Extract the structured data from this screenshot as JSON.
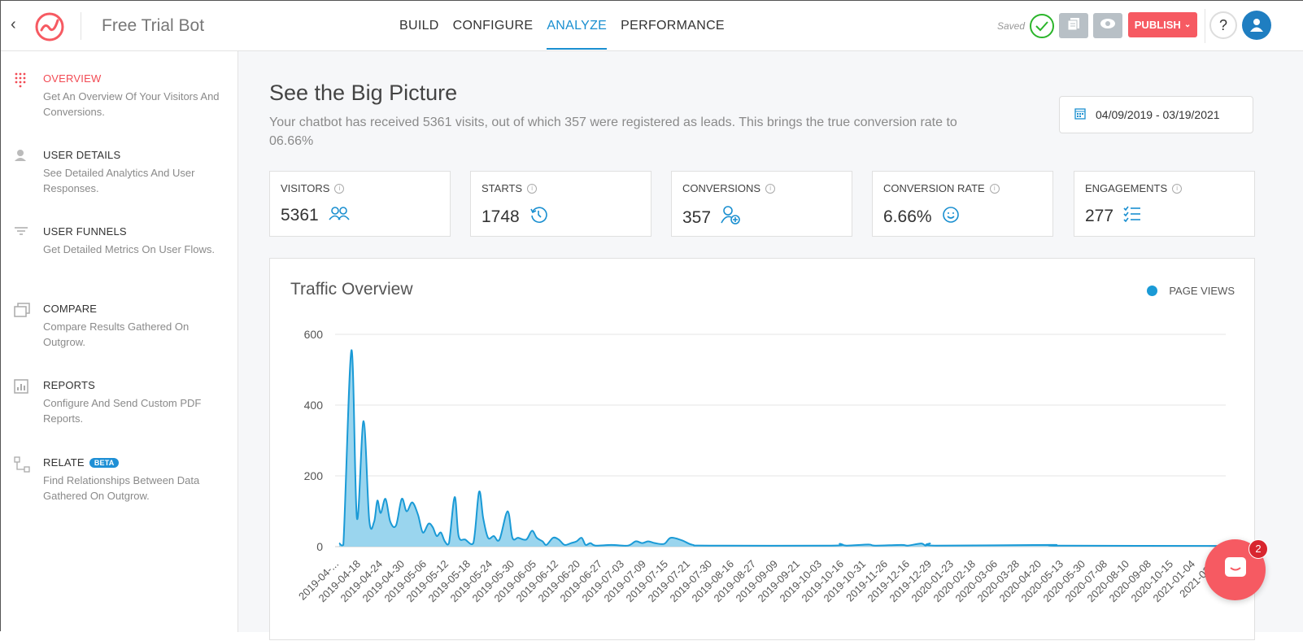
{
  "header": {
    "title": "Free Trial Bot",
    "nav": [
      "BUILD",
      "CONFIGURE",
      "ANALYZE",
      "PERFORMANCE"
    ],
    "active_nav": "ANALYZE",
    "saved": "Saved",
    "publish": "PUBLISH",
    "help": "?"
  },
  "sidebar": {
    "items": [
      {
        "label": "OVERVIEW",
        "desc": "Get An Overview Of Your Visitors And Conversions.",
        "icon": "grid-dots-icon"
      },
      {
        "label": "USER DETAILS",
        "desc": "See Detailed Analytics And User Responses.",
        "icon": "user-icon"
      },
      {
        "label": "USER FUNNELS",
        "desc": "Get Detailed Metrics On User Flows.",
        "icon": "filter-icon"
      },
      {
        "label": "COMPARE",
        "desc": "Compare Results Gathered On Outgrow.",
        "icon": "windows-icon"
      },
      {
        "label": "REPORTS",
        "desc": "Configure And Send Custom PDF Reports.",
        "icon": "report-icon"
      },
      {
        "label": "RELATE",
        "badge": "BETA",
        "desc": "Find Relationships Between Data Gathered On Outgrow.",
        "icon": "relate-icon"
      }
    ]
  },
  "main": {
    "heading": "See the Big Picture",
    "subtitle": "Your chatbot has received 5361 visits, out of which 357 were registered as leads. This brings the true conversion rate to 06.66%",
    "date_range": "04/09/2019 - 03/19/2021",
    "stats": [
      {
        "label": "VISITORS",
        "value": "5361",
        "icon": "users-icon"
      },
      {
        "label": "STARTS",
        "value": "1748",
        "icon": "history-icon"
      },
      {
        "label": "CONVERSIONS",
        "value": "357",
        "icon": "user-plus-icon"
      },
      {
        "label": "CONVERSION RATE",
        "value": "6.66%",
        "icon": "smile-icon"
      },
      {
        "label": "ENGAGEMENTS",
        "value": "277",
        "icon": "checklist-icon"
      }
    ]
  },
  "chat": {
    "badge": "2"
  },
  "colors": {
    "accent": "#1a8fd0",
    "publish": "#f65a62",
    "series": "#1a9ad6"
  },
  "chart_data": {
    "type": "area",
    "title": "Traffic Overview",
    "legend": [
      "PAGE VIEWS"
    ],
    "legend_position": "top-right",
    "ylim": [
      0,
      600
    ],
    "yticks": [
      0,
      200,
      400,
      600
    ],
    "grid": true,
    "categories": [
      "2019-04-...",
      "2019-04-18",
      "2019-04-24",
      "2019-04-30",
      "2019-05-06",
      "2019-05-12",
      "2019-05-18",
      "2019-05-24",
      "2019-05-30",
      "2019-06-05",
      "2019-06-12",
      "2019-06-20",
      "2019-06-27",
      "2019-07-03",
      "2019-07-09",
      "2019-07-15",
      "2019-07-21",
      "2019-07-30",
      "2019-08-16",
      "2019-08-27",
      "2019-09-09",
      "2019-09-21",
      "2019-10-03",
      "2019-10-16",
      "2019-10-31",
      "2019-11-26",
      "2019-12-16",
      "2019-12-29",
      "2020-01-23",
      "2020-02-18",
      "2020-03-06",
      "2020-03-28",
      "2020-04-20",
      "2020-05-13",
      "2020-05-30",
      "2020-07-08",
      "2020-08-10",
      "2020-09-08",
      "2020-10-15",
      "2021-01-04",
      "2021-02..."
    ],
    "series": [
      {
        "name": "PAGE VIEWS",
        "points": [
          [
            0,
            10
          ],
          [
            0.19,
            5
          ],
          [
            0.56,
            555
          ],
          [
            0.81,
            80
          ],
          [
            1.11,
            355
          ],
          [
            1.37,
            75
          ],
          [
            1.59,
            70
          ],
          [
            1.74,
            130
          ],
          [
            1.89,
            95
          ],
          [
            2.11,
            135
          ],
          [
            2.33,
            70
          ],
          [
            2.59,
            60
          ],
          [
            2.85,
            135
          ],
          [
            3.07,
            100
          ],
          [
            3.33,
            125
          ],
          [
            3.59,
            90
          ],
          [
            3.81,
            40
          ],
          [
            4.07,
            65
          ],
          [
            4.26,
            55
          ],
          [
            4.44,
            30
          ],
          [
            4.63,
            40
          ],
          [
            4.81,
            15
          ],
          [
            5,
            10
          ],
          [
            5.26,
            140
          ],
          [
            5.44,
            30
          ],
          [
            5.74,
            20
          ],
          [
            6.11,
            10
          ],
          [
            6.37,
            155
          ],
          [
            6.56,
            80
          ],
          [
            6.78,
            25
          ],
          [
            7.04,
            30
          ],
          [
            7.3,
            20
          ],
          [
            7.67,
            100
          ],
          [
            7.89,
            25
          ],
          [
            8.15,
            25
          ],
          [
            8.52,
            20
          ],
          [
            8.78,
            45
          ],
          [
            9,
            25
          ],
          [
            9.26,
            15
          ],
          [
            9.44,
            5
          ],
          [
            9.74,
            25
          ],
          [
            10,
            20
          ],
          [
            10.26,
            5
          ],
          [
            10.56,
            10
          ],
          [
            10.81,
            15
          ],
          [
            11.04,
            25
          ],
          [
            11.22,
            5
          ],
          [
            11.44,
            10
          ],
          [
            11.67,
            3
          ],
          [
            12.4,
            5
          ],
          [
            13.15,
            3
          ],
          [
            13.5,
            15
          ],
          [
            13.8,
            10
          ],
          [
            14.07,
            15
          ],
          [
            14.37,
            10
          ],
          [
            14.8,
            8
          ],
          [
            15.1,
            25
          ],
          [
            15.6,
            18
          ],
          [
            16.1,
            5
          ],
          [
            16.85,
            3
          ],
          [
            22.4,
            3
          ],
          [
            22.8,
            8
          ],
          [
            23.1,
            3
          ],
          [
            24.1,
            6
          ],
          [
            24.4,
            3
          ],
          [
            25.6,
            5
          ],
          [
            25.9,
            3
          ],
          [
            26.5,
            9
          ],
          [
            26.7,
            3
          ],
          [
            26.9,
            9
          ],
          [
            27.2,
            3
          ],
          [
            32.4,
            5
          ],
          [
            32.8,
            3
          ],
          [
            40.4,
            2
          ]
        ]
      }
    ]
  }
}
